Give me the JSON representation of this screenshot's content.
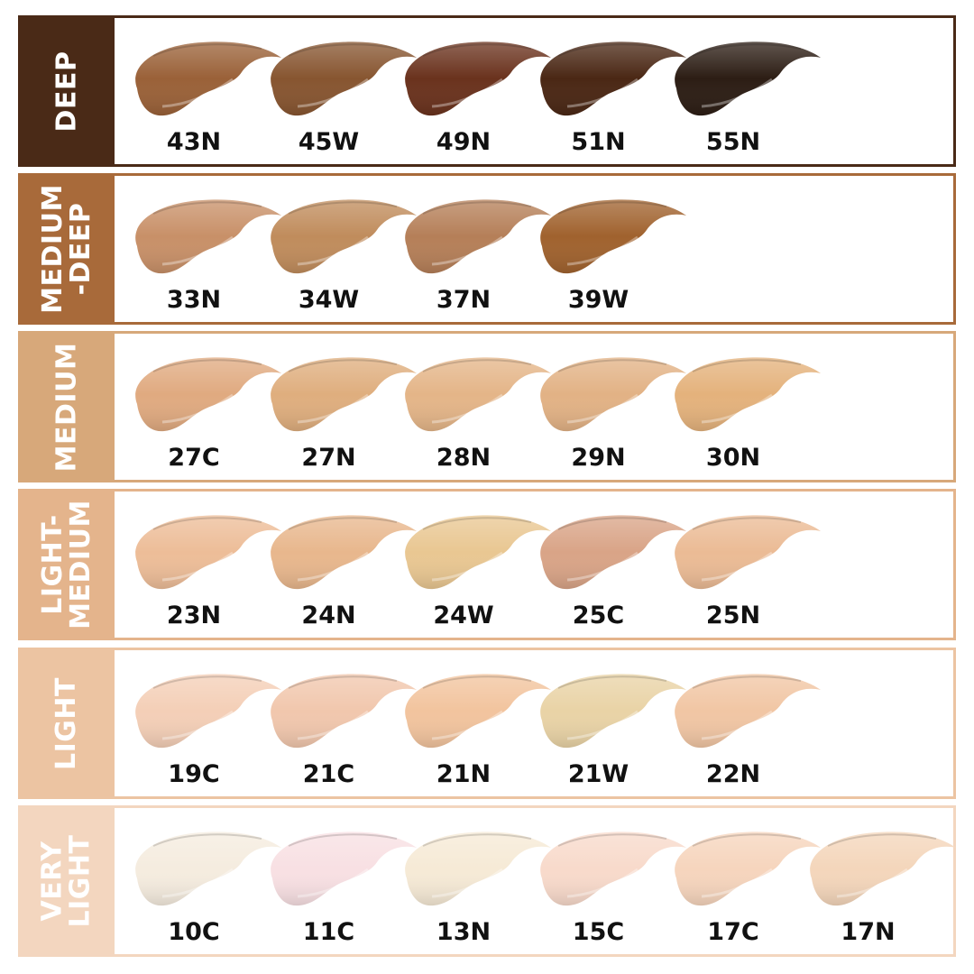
{
  "groups": [
    {
      "label": "DEEP",
      "color": "#4a2a17",
      "shades": [
        {
          "name": "43N",
          "color": "#9a6138"
        },
        {
          "name": "45W",
          "color": "#875530"
        },
        {
          "name": "49N",
          "color": "#6a321d"
        },
        {
          "name": "51N",
          "color": "#4a2714"
        },
        {
          "name": "55N",
          "color": "#2c1d14"
        }
      ]
    },
    {
      "label": "MEDIUM\n-DEEP",
      "color": "#a86a3a",
      "shades": [
        {
          "name": "33N",
          "color": "#c89068"
        },
        {
          "name": "34W",
          "color": "#c08c5c"
        },
        {
          "name": "37N",
          "color": "#b57f58"
        },
        {
          "name": "39W",
          "color": "#a0622e"
        }
      ]
    },
    {
      "label": "MEDIUM",
      "color": "#d7a87a",
      "shades": [
        {
          "name": "27C",
          "color": "#e0aa80"
        },
        {
          "name": "27N",
          "color": "#dfae7e"
        },
        {
          "name": "28N",
          "color": "#e4b588"
        },
        {
          "name": "29N",
          "color": "#e2b285"
        },
        {
          "name": "30N",
          "color": "#e4b27c"
        }
      ]
    },
    {
      "label": "LIGHT-\nMEDIUM",
      "color": "#e4b48c",
      "shades": [
        {
          "name": "23N",
          "color": "#edbd98"
        },
        {
          "name": "24N",
          "color": "#e8b78d"
        },
        {
          "name": "24W",
          "color": "#e9c792"
        },
        {
          "name": "25C",
          "color": "#d9a487"
        },
        {
          "name": "25N",
          "color": "#ebbb95"
        }
      ]
    },
    {
      "label": "LIGHT",
      "color": "#ecc4a2",
      "shades": [
        {
          "name": "19C",
          "color": "#f4cfb7"
        },
        {
          "name": "21C",
          "color": "#f1c7ad"
        },
        {
          "name": "21N",
          "color": "#f2c49e"
        },
        {
          "name": "21W",
          "color": "#e9d3a6"
        },
        {
          "name": "22N",
          "color": "#f1c6a4"
        }
      ]
    },
    {
      "label": "VERY\nLIGHT",
      "color": "#f3d6bf",
      "shades": [
        {
          "name": "10C",
          "color": "#f5ecdf"
        },
        {
          "name": "11C",
          "color": "#f8e0e3"
        },
        {
          "name": "13N",
          "color": "#f6ead6"
        },
        {
          "name": "15C",
          "color": "#f8dacb"
        },
        {
          "name": "17C",
          "color": "#f6d5bd"
        },
        {
          "name": "17N",
          "color": "#f4d6bb"
        }
      ]
    }
  ]
}
